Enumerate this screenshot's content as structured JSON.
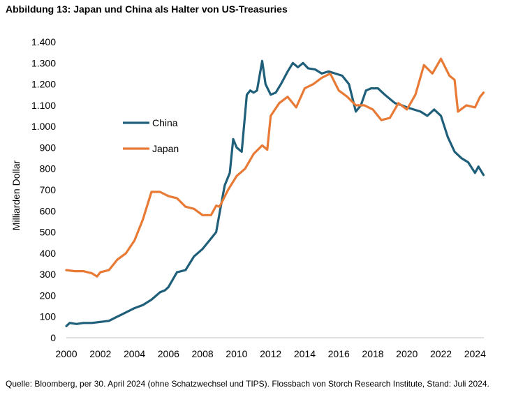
{
  "title": "Abbildung 13: Japan und China als Halter von US-Treasuries",
  "source": "Quelle: Bloomberg, per 30. April 2024 (ohne Schatzwechsel und TIPS). Flossbach von Storch Research Institute, Stand: Juli 2024.",
  "chart_data": {
    "type": "line",
    "title": "Abbildung 13: Japan und China als Halter von US-Treasuries",
    "xlabel": "",
    "ylabel": "Milliarden Dollar",
    "xlim": [
      2000,
      2024.5
    ],
    "ylim": [
      0,
      1400
    ],
    "xticks": [
      2000,
      2002,
      2004,
      2006,
      2008,
      2010,
      2012,
      2014,
      2016,
      2018,
      2020,
      2022,
      2024
    ],
    "xtick_labels": [
      "2000",
      "2002",
      "2004",
      "2006",
      "2008",
      "2010",
      "2012",
      "2014",
      "2016",
      "2018",
      "2020",
      "2022",
      "2024"
    ],
    "yticks": [
      0,
      100,
      200,
      300,
      400,
      500,
      600,
      700,
      800,
      900,
      1000,
      1100,
      1200,
      1300,
      1400
    ],
    "ytick_labels": [
      "0",
      "100",
      "200",
      "300",
      "400",
      "500",
      "600",
      "700",
      "800",
      "900",
      "1.000",
      "1.100",
      "1.200",
      "1.300",
      "1.400"
    ],
    "grid": false,
    "legend_position": "middle-left",
    "series": [
      {
        "name": "China",
        "color": "#1f5f7a",
        "x": [
          2000.0,
          2000.2,
          2000.6,
          2001.0,
          2001.5,
          2002.0,
          2002.5,
          2003.0,
          2003.5,
          2004.0,
          2004.5,
          2005.0,
          2005.5,
          2005.8,
          2006.0,
          2006.5,
          2007.0,
          2007.5,
          2008.0,
          2008.5,
          2008.8,
          2009.0,
          2009.3,
          2009.6,
          2009.8,
          2010.0,
          2010.3,
          2010.6,
          2010.8,
          2011.0,
          2011.2,
          2011.5,
          2011.7,
          2012.0,
          2012.3,
          2012.6,
          2012.8,
          2013.0,
          2013.3,
          2013.6,
          2013.9,
          2014.2,
          2014.6,
          2015.0,
          2015.4,
          2015.8,
          2016.2,
          2016.6,
          2017.0,
          2017.3,
          2017.6,
          2017.9,
          2018.3,
          2018.7,
          2019.0,
          2019.3,
          2019.7,
          2020.0,
          2020.4,
          2020.8,
          2021.2,
          2021.6,
          2022.0,
          2022.4,
          2022.8,
          2023.2,
          2023.6,
          2024.0,
          2024.2,
          2024.5
        ],
        "values": [
          55,
          70,
          65,
          70,
          70,
          75,
          80,
          100,
          120,
          140,
          155,
          180,
          215,
          225,
          240,
          310,
          320,
          385,
          420,
          470,
          500,
          590,
          720,
          780,
          940,
          900,
          880,
          1150,
          1170,
          1160,
          1170,
          1310,
          1200,
          1150,
          1160,
          1200,
          1230,
          1260,
          1300,
          1280,
          1300,
          1275,
          1270,
          1250,
          1260,
          1250,
          1240,
          1200,
          1070,
          1100,
          1170,
          1180,
          1180,
          1150,
          1130,
          1110,
          1100,
          1090,
          1080,
          1070,
          1050,
          1080,
          1050,
          950,
          880,
          850,
          830,
          780,
          810,
          770
        ]
      },
      {
        "name": "Japan",
        "color": "#e87a35",
        "x": [
          2000.0,
          2000.5,
          2001.0,
          2001.5,
          2001.8,
          2002.0,
          2002.5,
          2003.0,
          2003.5,
          2004.0,
          2004.5,
          2005.0,
          2005.5,
          2006.0,
          2006.5,
          2007.0,
          2007.5,
          2008.0,
          2008.5,
          2008.8,
          2009.0,
          2009.5,
          2010.0,
          2010.5,
          2011.0,
          2011.5,
          2011.8,
          2012.0,
          2012.5,
          2013.0,
          2013.5,
          2014.0,
          2014.5,
          2015.0,
          2015.5,
          2016.0,
          2016.5,
          2017.0,
          2017.5,
          2018.0,
          2018.5,
          2019.0,
          2019.5,
          2020.0,
          2020.5,
          2021.0,
          2021.5,
          2022.0,
          2022.5,
          2022.8,
          2023.0,
          2023.5,
          2024.0,
          2024.3,
          2024.5
        ],
        "values": [
          320,
          315,
          315,
          305,
          290,
          310,
          320,
          370,
          400,
          460,
          560,
          690,
          690,
          670,
          660,
          620,
          610,
          580,
          580,
          625,
          620,
          700,
          765,
          800,
          870,
          910,
          890,
          1050,
          1110,
          1140,
          1090,
          1180,
          1200,
          1230,
          1250,
          1170,
          1140,
          1100,
          1100,
          1080,
          1030,
          1040,
          1110,
          1080,
          1150,
          1290,
          1250,
          1320,
          1240,
          1220,
          1070,
          1100,
          1090,
          1140,
          1160
        ]
      }
    ]
  }
}
